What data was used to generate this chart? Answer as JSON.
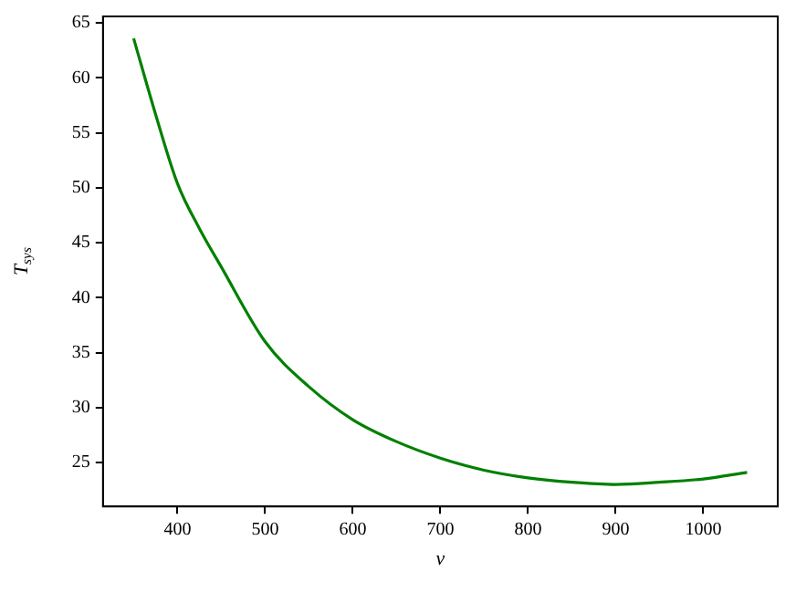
{
  "chart_data": {
    "type": "line",
    "xlabel": "ν",
    "ylabel": "T$_{sys}$",
    "x": [
      350,
      375,
      400,
      425,
      450,
      500,
      550,
      600,
      650,
      700,
      750,
      800,
      850,
      900,
      950,
      1000,
      1050
    ],
    "series": [
      {
        "color": "#008000",
        "values": [
          63.6,
          56.7,
          50.4,
          46.3,
          42.8,
          36.0,
          31.9,
          28.9,
          26.9,
          25.4,
          24.3,
          23.6,
          23.2,
          23.0,
          23.2,
          23.5,
          24.1
        ]
      }
    ],
    "xlim": [
      315,
      1085
    ],
    "xticks": [
      400,
      500,
      600,
      700,
      800,
      900,
      1000
    ],
    "ylim": [
      21.0,
      65.6
    ],
    "yticks": [
      25,
      30,
      35,
      40,
      45,
      50,
      55,
      60,
      65
    ],
    "grid": false,
    "legend": false,
    "marker": "none",
    "line_style": "solid"
  }
}
